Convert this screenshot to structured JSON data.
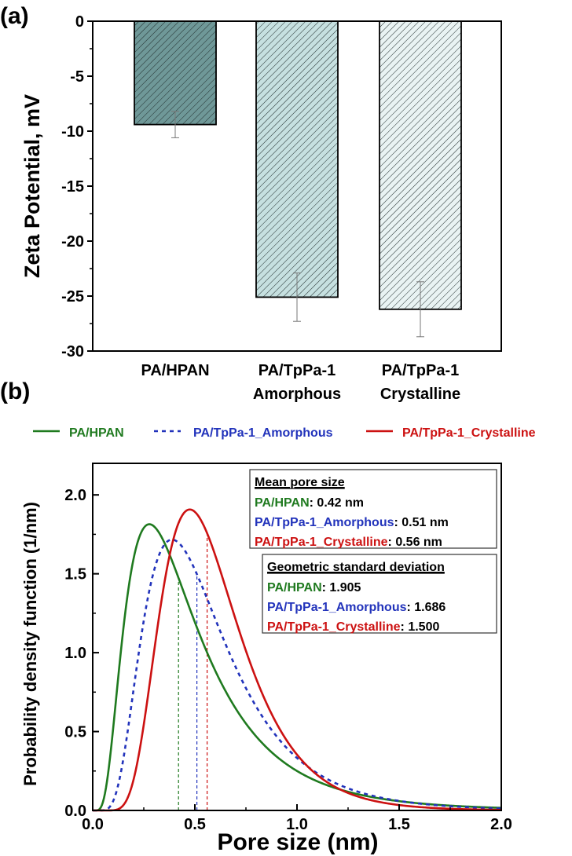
{
  "panel_a": {
    "label": "(a)"
  },
  "panel_b": {
    "label": "(b)"
  },
  "colors": {
    "green": "#1f7a1f",
    "blue": "#2233bb",
    "red": "#cc1111",
    "bar1": "#6f9898",
    "bar2": "#c6e0e0",
    "bar3": "#e9f3f3"
  },
  "chart_data": [
    {
      "type": "bar",
      "ylabel": "Zeta Potential, mV",
      "ylim": [
        -30,
        0
      ],
      "yticks": [
        "0",
        "-5",
        "-10",
        "-15",
        "-20",
        "-25",
        "-30"
      ],
      "categories": [
        [
          "PA/HPAN"
        ],
        [
          "PA/TpPa-1",
          "Amorphous"
        ],
        [
          "PA/TpPa-1",
          "Crystalline"
        ]
      ],
      "values": [
        -9.4,
        -25.1,
        -26.2
      ],
      "errors": [
        1.2,
        2.2,
        2.5
      ],
      "hatch": "diagonal"
    },
    {
      "type": "line",
      "xlabel": "Pore size (nm)",
      "ylabel": "Probability density function (1/nm)",
      "xlim": [
        0,
        2.0
      ],
      "ylim": [
        0,
        2.2
      ],
      "xticks": [
        "0.0",
        "0.5",
        "1.0",
        "1.5",
        "2.0"
      ],
      "yticks": [
        "0.0",
        "0.5",
        "1.0",
        "1.5",
        "2.0"
      ],
      "legend": {
        "position": "top",
        "items": [
          "PA/HPAN",
          "PA/TpPa-1_Amorphous",
          "PA/TpPa-1_Crystalline"
        ]
      },
      "series": [
        {
          "name": "PA/HPAN",
          "mean": 0.42,
          "gsd": 1.905,
          "style": "solid",
          "color": "#1f7a1f"
        },
        {
          "name": "PA/TpPa-1_Amorphous",
          "mean": 0.51,
          "gsd": 1.686,
          "style": "dotted",
          "color": "#2233bb"
        },
        {
          "name": "PA/TpPa-1_Crystalline",
          "mean": 0.56,
          "gsd": 1.5,
          "style": "solid",
          "color": "#cc1111"
        }
      ],
      "annotations": {
        "mean_box": {
          "title": "Mean pore size",
          "rows": [
            {
              "name": "PA/HPAN",
              "value": ": 0.42 nm"
            },
            {
              "name": "PA/TpPa-1_Amorphous",
              "value": ": 0.51 nm"
            },
            {
              "name": "PA/TpPa-1_Crystalline",
              "value": ": 0.56 nm"
            }
          ]
        },
        "gsd_box": {
          "title": "Geometric standard deviation",
          "rows": [
            {
              "name": "PA/HPAN",
              "value": ": 1.905"
            },
            {
              "name": "PA/TpPa-1_Amorphous",
              "value": ": 1.686"
            },
            {
              "name": "PA/TpPa-1_Crystalline",
              "value": ": 1.500"
            }
          ]
        }
      }
    }
  ]
}
